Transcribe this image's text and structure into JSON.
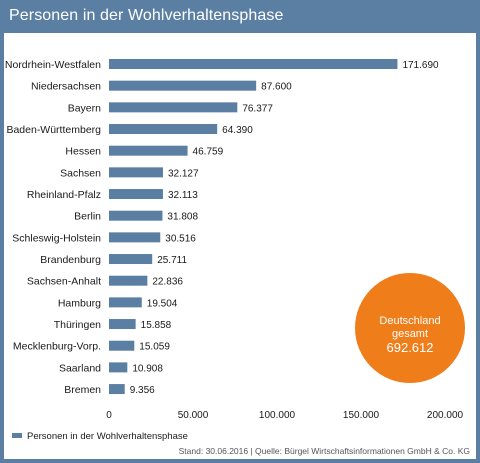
{
  "header": {
    "title": "Personen in der Wohlverhaltensphase"
  },
  "colors": {
    "frame": "#5b7fa3",
    "bar": "#5b7fa3",
    "badge": "#ee7d1a"
  },
  "chart_data": {
    "type": "bar",
    "orientation": "horizontal",
    "categories": [
      "Nordrhein-Westfalen",
      "Niedersachsen",
      "Bayern",
      "Baden-Württemberg",
      "Hessen",
      "Sachsen",
      "Rheinland-Pfalz",
      "Berlin",
      "Schleswig-Holstein",
      "Brandenburg",
      "Sachsen-Anhalt",
      "Hamburg",
      "Thüringen",
      "Mecklenburg-Vorp.",
      "Saarland",
      "Bremen"
    ],
    "values": [
      171690,
      87600,
      76377,
      64390,
      46759,
      32127,
      32113,
      31808,
      30516,
      25711,
      22836,
      19504,
      15858,
      15059,
      10908,
      9356
    ],
    "value_labels": [
      "171.690",
      "87.600",
      "76.377",
      "64.390",
      "46.759",
      "32.127",
      "32.113",
      "31.808",
      "30.516",
      "25.711",
      "22.836",
      "19.504",
      "15.858",
      "15.059",
      "10.908",
      "9.356"
    ],
    "xlim": [
      0,
      200000
    ],
    "x_ticks": [
      0,
      50000,
      100000,
      150000,
      200000
    ],
    "x_tick_labels": [
      "0",
      "50.000",
      "100.000",
      "150.000",
      "200.000"
    ],
    "legend": {
      "label": "Personen in der Wohlverhaltensphase",
      "position": "bottom-left"
    },
    "grid": false
  },
  "badge": {
    "line1": "Deutschland",
    "line2": "gesamt",
    "value": "692.612"
  },
  "source": "Stand: 30.06.2016 | Quelle: Bürgel Wirtschaftsinformationen GmbH & Co. KG"
}
